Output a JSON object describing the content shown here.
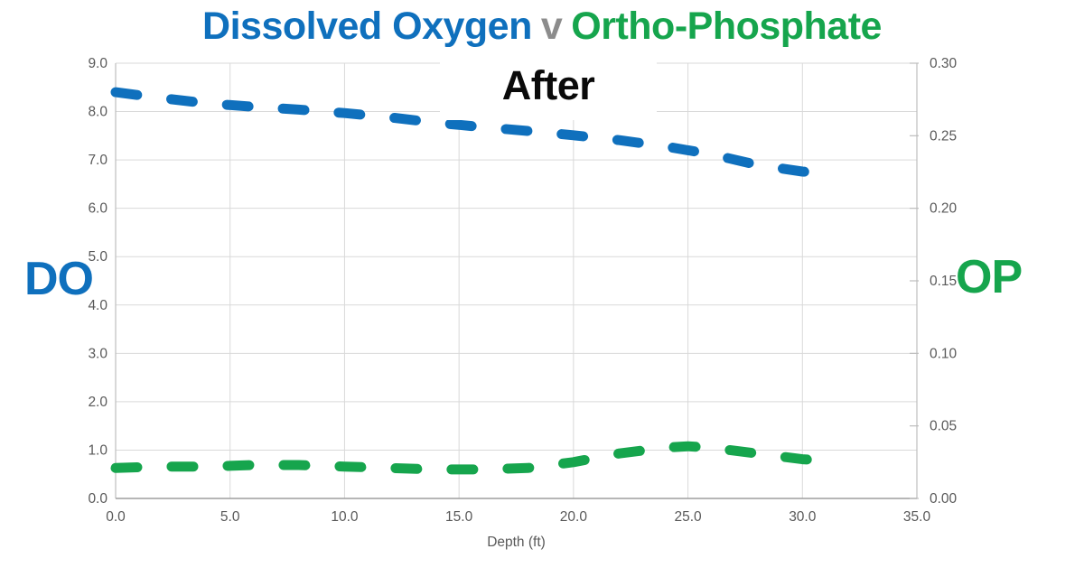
{
  "title": {
    "blue": "Dissolved Oxygen",
    "separator": "v",
    "green": "Ortho-Phosphate"
  },
  "annotation": {
    "label": "After"
  },
  "colors": {
    "blue": "#0f70bd",
    "green": "#16a54d",
    "separator_gray": "#8c8c8c",
    "grid": "#d9d9d9",
    "axis": "#bdbdbd",
    "bottom_axis": "#9d9d9d",
    "tick_text": "#595959",
    "annotation_text": "#0a0a0a"
  },
  "chart_data": {
    "type": "line",
    "title": "Dissolved Oxygen v Ortho-Phosphate",
    "annotation": "After",
    "xlabel": "Depth (ft)",
    "grid": true,
    "x_axis": {
      "min": 0,
      "max": 35,
      "tick_values": [
        0,
        5,
        10,
        15,
        20,
        25,
        30,
        35
      ],
      "tick_labels": [
        "0.0",
        "5.0",
        "10.0",
        "15.0",
        "20.0",
        "25.0",
        "30.0",
        "35.0"
      ]
    },
    "y_left": {
      "label": "DO",
      "min": 0,
      "max": 9,
      "tick_values": [
        0,
        1,
        2,
        3,
        4,
        5,
        6,
        7,
        8,
        9
      ],
      "tick_labels": [
        "0.0",
        "1.0",
        "2.0",
        "3.0",
        "4.0",
        "5.0",
        "6.0",
        "7.0",
        "8.0",
        "9.0"
      ],
      "color": "#0f70bd"
    },
    "y_right": {
      "label": "OP",
      "min": 0,
      "max": 0.3,
      "tick_values": [
        0,
        0.05,
        0.1,
        0.15,
        0.2,
        0.25,
        0.3
      ],
      "tick_labels": [
        "0.00",
        "0.05",
        "0.10",
        "0.15",
        "0.20",
        "0.25",
        "0.30"
      ],
      "color": "#16a54d"
    },
    "series": [
      {
        "name": "Dissolved Oxygen (DO)",
        "axis": "left",
        "color": "#0f70bd",
        "style": "dashed",
        "points": [
          [
            0,
            8.4
          ],
          [
            2,
            8.28
          ],
          [
            4,
            8.17
          ],
          [
            6,
            8.1
          ],
          [
            8,
            8.04
          ],
          [
            10,
            7.97
          ],
          [
            12,
            7.88
          ],
          [
            14,
            7.77
          ],
          [
            16,
            7.68
          ],
          [
            18,
            7.6
          ],
          [
            20,
            7.51
          ],
          [
            22,
            7.41
          ],
          [
            24,
            7.28
          ],
          [
            26,
            7.12
          ],
          [
            28,
            6.9
          ],
          [
            30,
            6.76
          ],
          [
            31,
            6.72
          ]
        ]
      },
      {
        "name": "Ortho-Phosphate (OP)",
        "axis": "right",
        "color": "#16a54d",
        "style": "dashed",
        "points": [
          [
            0,
            0.021
          ],
          [
            2,
            0.022
          ],
          [
            4,
            0.022
          ],
          [
            6,
            0.023
          ],
          [
            8,
            0.023
          ],
          [
            10,
            0.022
          ],
          [
            12,
            0.021
          ],
          [
            14,
            0.02
          ],
          [
            16,
            0.02
          ],
          [
            18,
            0.021
          ],
          [
            20,
            0.025
          ],
          [
            22,
            0.031
          ],
          [
            24,
            0.035
          ],
          [
            25,
            0.036
          ],
          [
            26,
            0.035
          ],
          [
            28,
            0.031
          ],
          [
            30,
            0.027
          ],
          [
            31,
            0.026
          ]
        ]
      }
    ]
  }
}
